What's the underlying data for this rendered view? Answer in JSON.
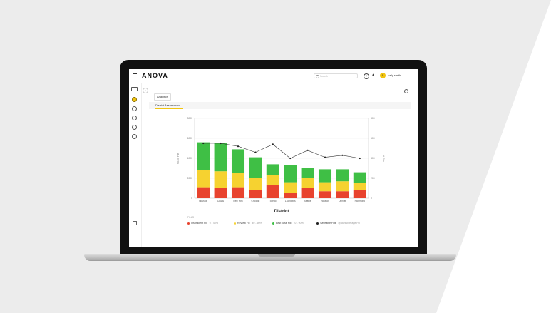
{
  "app": {
    "logo": "ANOVA",
    "search_placeholder": "Search",
    "username": "sally.smith",
    "avatar_initial": "S"
  },
  "tabs": {
    "main": "Analytics",
    "sub": "District Assessment"
  },
  "colors": {
    "insufficient": "#e8432e",
    "review": "#f6d230",
    "best_case": "#3fbf45",
    "line": "#333333",
    "accent": "#f1c40f"
  },
  "chart_data": {
    "type": "bar",
    "stacked": true,
    "xlabel": "District",
    "ylabel_left": "No. of Fills",
    "ylabel_right": "% Fills",
    "categories": [
      "Houston",
      "Dallas",
      "New York",
      "Chicago",
      "Toledo",
      "L. Angeles",
      "Seattle",
      "Houston",
      "Denver",
      "Richmond"
    ],
    "yleft_ticks": [
      "0",
      "2000",
      "4000",
      "6000",
      "8000"
    ],
    "yright_ticks": [
      "0",
      "200",
      "400",
      "600",
      "800"
    ],
    "ylim": [
      0,
      8000
    ],
    "series": [
      {
        "name": "Insufficient Fill",
        "range": "0 - 40%",
        "values": [
          1100,
          1000,
          1100,
          800,
          1300,
          500,
          1000,
          700,
          700,
          800
        ]
      },
      {
        "name": "Review Fill",
        "range": "40 - 60%",
        "values": [
          1700,
          1700,
          1400,
          1200,
          1000,
          1100,
          1000,
          900,
          1000,
          700
        ]
      },
      {
        "name": "Best case Fill",
        "range": "70 - 90%",
        "values": [
          2800,
          2800,
          2400,
          2100,
          1100,
          1700,
          1000,
          1300,
          1200,
          1100
        ]
      }
    ],
    "line_series": {
      "name": "Saveable Fills",
      "range": "@36% Average Fill",
      "values": [
        5500,
        5500,
        5200,
        4600,
        5400,
        4000,
        4800,
        4100,
        4300,
        4000
      ]
    },
    "legend_title": "FILLS"
  }
}
